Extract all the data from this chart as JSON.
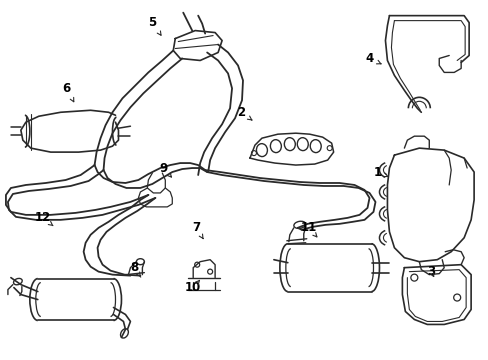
{
  "bg_color": "#ffffff",
  "line_color": "#2a2a2a",
  "label_color": "#000000",
  "figsize": [
    4.89,
    3.6
  ],
  "dpi": 100,
  "label_positions": {
    "5": [
      152,
      22,
      163,
      38
    ],
    "6": [
      66,
      88,
      75,
      105
    ],
    "4": [
      370,
      58,
      385,
      65
    ],
    "2": [
      241,
      112,
      255,
      122
    ],
    "1": [
      378,
      172,
      392,
      178
    ],
    "3": [
      432,
      272,
      435,
      278
    ],
    "9": [
      163,
      168,
      172,
      178
    ],
    "7": [
      196,
      228,
      205,
      242
    ],
    "8": [
      134,
      268,
      142,
      280
    ],
    "10": [
      193,
      288,
      200,
      280
    ],
    "11": [
      309,
      228,
      318,
      238
    ],
    "12": [
      42,
      218,
      55,
      228
    ]
  }
}
